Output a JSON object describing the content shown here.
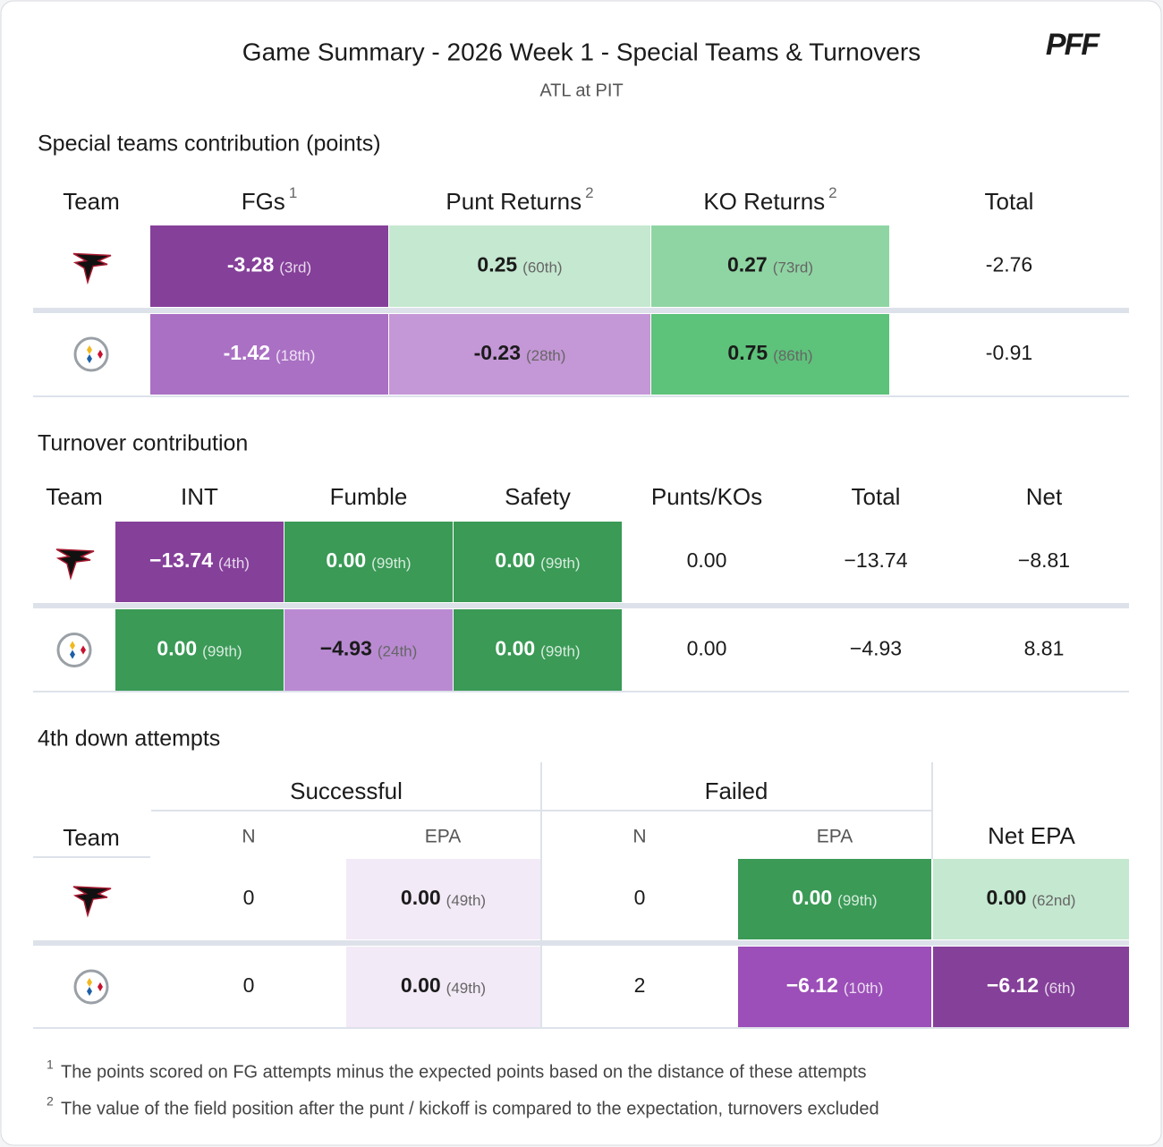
{
  "header": {
    "title": "Game Summary - 2026 Week 1 - Special Teams & Turnovers",
    "subtitle": "ATL at PIT",
    "logo": "PFF"
  },
  "special_teams": {
    "title": "Special teams contribution (points)",
    "columns": [
      {
        "label": "Team"
      },
      {
        "label": "FGs",
        "note": "1"
      },
      {
        "label": "Punt Returns",
        "note": "2"
      },
      {
        "label": "KO Returns",
        "note": "2"
      },
      {
        "label": "Total"
      }
    ],
    "rows": [
      {
        "cells": [
          {
            "value": "-3.28",
            "rank": "(3rd)",
            "color": "#85409a"
          },
          {
            "value": "0.25",
            "rank": "(60th)",
            "color": "#c5e8d0"
          },
          {
            "value": "0.27",
            "rank": "(73rd)",
            "color": "#8fd5a3"
          }
        ],
        "total": "-2.76"
      },
      {
        "cells": [
          {
            "value": "-1.42",
            "rank": "(18th)",
            "color": "#aa70c4"
          },
          {
            "value": "-0.23",
            "rank": "(28th)",
            "color": "#c497d6"
          },
          {
            "value": "0.75",
            "rank": "(86th)",
            "color": "#5dc27a"
          }
        ],
        "total": "-0.91"
      }
    ]
  },
  "turnovers": {
    "title": "Turnover contribution",
    "columns": [
      "Team",
      "INT",
      "Fumble",
      "Safety",
      "Punts/KOs",
      "Total",
      "Net"
    ],
    "rows": [
      {
        "cells": [
          {
            "value": "−13.74",
            "rank": "(4th)",
            "color": "#85409a"
          },
          {
            "value": "0.00",
            "rank": "(99th)",
            "color": "#3a9a56"
          },
          {
            "value": "0.00",
            "rank": "(99th)",
            "color": "#3a9a56"
          }
        ],
        "punts_kos": "0.00",
        "total": "−13.74",
        "net": "−8.81"
      },
      {
        "cells": [
          {
            "value": "0.00",
            "rank": "(99th)",
            "color": "#3a9a56"
          },
          {
            "value": "−4.93",
            "rank": "(24th)",
            "color": "#b98ad2"
          },
          {
            "value": "0.00",
            "rank": "(99th)",
            "color": "#3a9a56"
          }
        ],
        "punts_kos": "0.00",
        "total": "−4.93",
        "net": "8.81"
      }
    ]
  },
  "fourth_down": {
    "title": "4th down attempts",
    "groups": [
      "Successful",
      "Failed"
    ],
    "columns": [
      "Team",
      "N",
      "EPA",
      "N",
      "EPA",
      "Net EPA"
    ],
    "rows": [
      {
        "successful_n": "0",
        "successful_epa": {
          "value": "0.00",
          "rank": "(49th)",
          "color": "#f3eaf7"
        },
        "failed_n": "0",
        "failed_epa": {
          "value": "0.00",
          "rank": "(99th)",
          "color": "#3a9a56"
        },
        "net_epa": {
          "value": "0.00",
          "rank": "(62nd)",
          "color": "#c5e8d0"
        }
      },
      {
        "successful_n": "0",
        "successful_epa": {
          "value": "0.00",
          "rank": "(49th)",
          "color": "#f3eaf7"
        },
        "failed_n": "2",
        "failed_epa": {
          "value": "−6.12",
          "rank": "(10th)",
          "color": "#9c4fb8"
        },
        "net_epa": {
          "value": "−6.12",
          "rank": "(6th)",
          "color": "#85409a"
        }
      }
    ]
  },
  "footnotes": [
    {
      "mark": "1",
      "text": "The points scored on FG attempts minus the expected points based on the distance of these attempts"
    },
    {
      "mark": "2",
      "text": "The value of the field position after the punt / kickoff is compared to the expectation, turnovers excluded"
    }
  ]
}
